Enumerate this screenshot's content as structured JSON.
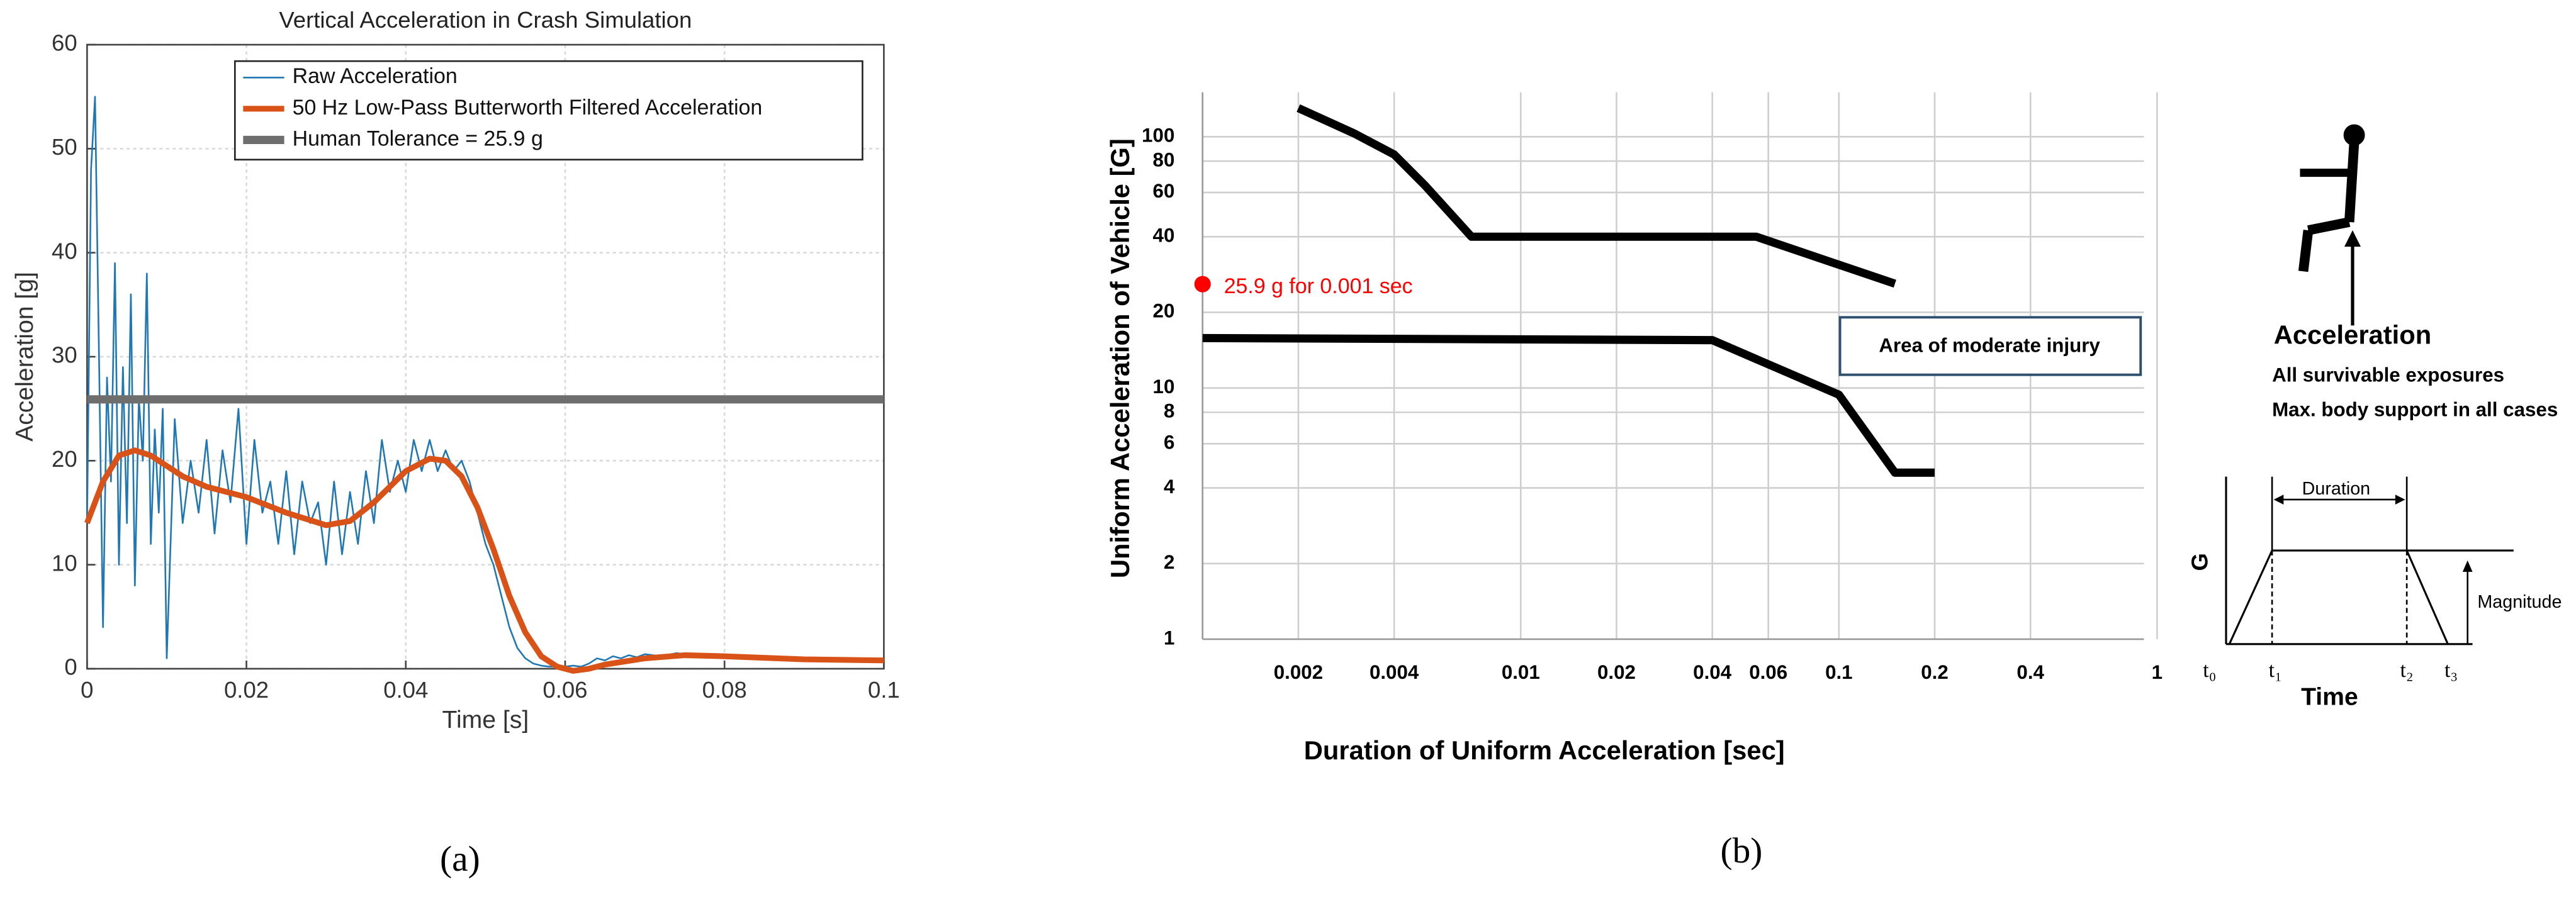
{
  "chart_data": [
    {
      "type": "line",
      "title": "Vertical Acceleration in Crash Simulation",
      "x_label": "Time [s]",
      "y_label": "Acceleration [g]",
      "panel_label": "(a)",
      "xlim": [
        0,
        0.1
      ],
      "xticks": [
        0,
        0.02,
        0.04,
        0.06,
        0.08,
        0.1
      ],
      "ylim": [
        0,
        60
      ],
      "yticks": [
        0,
        10,
        20,
        30,
        40,
        50,
        60
      ],
      "grid": true,
      "legend": "upper right",
      "series": [
        {
          "name": "Raw Acceleration",
          "color": "#1f77b4",
          "width": 1,
          "x": [
            0,
            0.0005,
            0.001,
            0.0015,
            0.002,
            0.0025,
            0.003,
            0.0035,
            0.004,
            0.0045,
            0.005,
            0.0055,
            0.006,
            0.0065,
            0.007,
            0.0075,
            0.008,
            0.0085,
            0.009,
            0.0095,
            0.01,
            0.011,
            0.012,
            0.013,
            0.014,
            0.015,
            0.016,
            0.017,
            0.018,
            0.019,
            0.02,
            0.021,
            0.022,
            0.023,
            0.024,
            0.025,
            0.026,
            0.027,
            0.028,
            0.029,
            0.03,
            0.031,
            0.032,
            0.033,
            0.034,
            0.035,
            0.036,
            0.037,
            0.038,
            0.039,
            0.04,
            0.041,
            0.042,
            0.043,
            0.044,
            0.045,
            0.046,
            0.047,
            0.048,
            0.049,
            0.05,
            0.051,
            0.052,
            0.053,
            0.054,
            0.055,
            0.056,
            0.057,
            0.058,
            0.059,
            0.06,
            0.061,
            0.062,
            0.063,
            0.064,
            0.065,
            0.066,
            0.067,
            0.068,
            0.069,
            0.07,
            0.072,
            0.074,
            0.076,
            0.078,
            0.08,
            0.082,
            0.085,
            0.088,
            0.09,
            0.093,
            0.096,
            0.1
          ],
          "values": [
            14,
            48,
            55,
            30,
            4,
            28,
            18,
            39,
            10,
            29,
            14,
            36,
            8,
            26,
            20,
            38,
            12,
            23,
            15,
            25,
            1,
            24,
            14,
            20,
            15,
            22,
            13,
            21,
            16,
            25,
            12,
            22,
            15,
            18,
            12,
            19,
            11,
            18,
            14,
            16,
            10,
            18,
            11,
            17,
            12,
            19,
            14,
            22,
            17,
            20,
            17,
            22,
            19,
            22,
            19,
            21,
            19,
            20,
            18,
            15,
            12,
            10,
            7,
            4,
            2,
            1,
            0.5,
            0.3,
            0.2,
            0.2,
            0.2,
            0.3,
            0.2,
            0.5,
            1,
            0.8,
            1.2,
            1,
            1.3,
            1.1,
            1.4,
            1.2,
            1.5,
            1.3,
            1.2,
            1.1,
            1,
            0.9,
            0.9,
            0.8,
            0.8,
            0.7,
            0.7
          ]
        },
        {
          "name": "50 Hz Low-Pass Butterworth Filtered Acceleration",
          "color": "#d95319",
          "width": 3.5,
          "x": [
            0,
            0.002,
            0.004,
            0.006,
            0.008,
            0.01,
            0.012,
            0.015,
            0.02,
            0.025,
            0.03,
            0.033,
            0.036,
            0.04,
            0.043,
            0.045,
            0.047,
            0.049,
            0.051,
            0.053,
            0.055,
            0.057,
            0.059,
            0.061,
            0.063,
            0.065,
            0.07,
            0.075,
            0.08,
            0.09,
            0.1
          ],
          "values": [
            14,
            18,
            20.5,
            21,
            20.5,
            19.5,
            18.5,
            17.5,
            16.5,
            15,
            13.8,
            14.2,
            16,
            19,
            20.2,
            20,
            18.5,
            15.5,
            11.5,
            7,
            3.5,
            1.2,
            0.2,
            -0.2,
            0,
            0.4,
            1,
            1.3,
            1.2,
            0.9,
            0.8
          ]
        },
        {
          "name": "Human Tolerance = 25.9 g",
          "color": "#6e6e6e",
          "width": 5,
          "x": [
            0,
            0.1
          ],
          "values": [
            25.9,
            25.9
          ]
        }
      ]
    },
    {
      "type": "line",
      "xscale": "log",
      "yscale": "log",
      "x_label": "Duration of Uniform Acceleration [sec]",
      "y_label": "Uniform Acceleration of Vehicle [G]",
      "panel_label": "(b)",
      "xlim": [
        0.001,
        1
      ],
      "xticks": [
        0.002,
        0.004,
        0.01,
        0.02,
        0.04,
        0.06,
        0.1,
        0.2,
        0.4,
        1
      ],
      "ylim": [
        1,
        180
      ],
      "yticks": [
        1,
        2,
        4,
        6,
        8,
        10,
        20,
        40,
        60,
        80,
        100
      ],
      "grid": true,
      "series": [
        {
          "color": "#000000",
          "width": 5,
          "x": [
            0.002,
            0.003,
            0.004,
            0.005,
            0.007,
            0.055,
            0.15
          ],
          "values": [
            130,
            103,
            85,
            64,
            40,
            40,
            26
          ]
        },
        {
          "color": "#000000",
          "width": 5,
          "x": [
            0.001,
            0.04,
            0.1,
            0.15,
            0.2
          ],
          "values": [
            15.8,
            15.5,
            9.4,
            4.6,
            4.6
          ]
        }
      ],
      "point": {
        "x": 0.001,
        "y": 25.9,
        "label": "25.9 g for 0.001 sec",
        "color": "#ff0000"
      },
      "box_label": "Area of moderate injury",
      "inset": {
        "heading": "Acceleration",
        "notes": [
          "All survivable exposures",
          "Max. body support in all cases"
        ],
        "duration": "Duration",
        "g": "G",
        "magnitude": "Magnitude",
        "time": "Time",
        "t_labels": [
          "t₀",
          "t₁",
          "t₂",
          "t₃"
        ]
      }
    }
  ]
}
